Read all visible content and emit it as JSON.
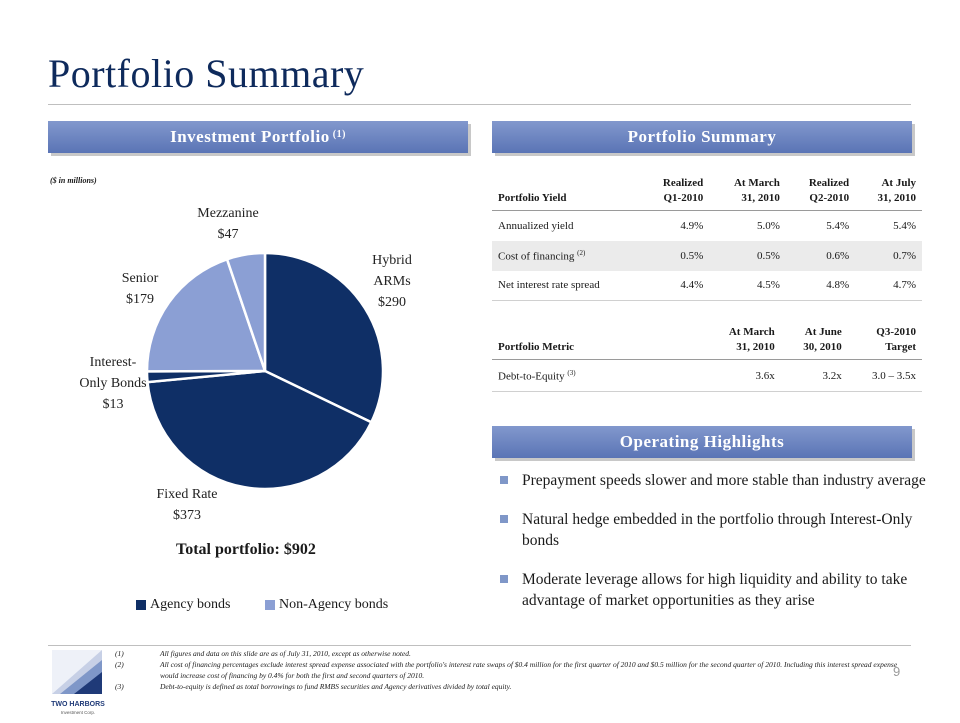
{
  "page": {
    "title": "Portfolio Summary",
    "page_number": "9"
  },
  "left_panel": {
    "header": "Investment Portfolio",
    "header_footnote": "(1)",
    "unit_note": "($ in millions)",
    "total": "Total portfolio: $902",
    "legend": [
      {
        "label": "Agency bonds",
        "color": "#0f2f66"
      },
      {
        "label": "Non-Agency bonds",
        "color": "#8b9fd4"
      }
    ]
  },
  "chart_data": {
    "type": "pie",
    "slices": [
      {
        "label": "Hybrid ARMs",
        "value": 290,
        "value_label": "$290",
        "group": "Agency bonds",
        "color": "#0f2f66"
      },
      {
        "label": "Fixed Rate",
        "value": 373,
        "value_label": "$373",
        "group": "Agency bonds",
        "color": "#0f2f66"
      },
      {
        "label": "Interest-Only Bonds",
        "value": 13,
        "value_label": "$13",
        "group": "Agency bonds",
        "color": "#0f2f66"
      },
      {
        "label": "Senior",
        "value": 179,
        "value_label": "$179",
        "group": "Non-Agency bonds",
        "color": "#8b9fd4"
      },
      {
        "label": "Mezzanine",
        "value": 47,
        "value_label": "$47",
        "group": "Non-Agency bonds",
        "color": "#8b9fd4"
      }
    ],
    "label_lines": {
      "Hybrid ARMs": [
        "Hybrid",
        "ARMs",
        "$290"
      ],
      "Fixed Rate": [
        "Fixed Rate",
        "$373"
      ],
      "Interest-Only Bonds": [
        "Interest-",
        "Only Bonds",
        "$13"
      ],
      "Senior": [
        "Senior",
        "$179"
      ],
      "Mezzanine": [
        "Mezzanine",
        "$47"
      ]
    }
  },
  "right_panel": {
    "summary_header": "Portfolio Summary",
    "yield_table": {
      "columns": [
        {
          "line1": "",
          "line2": "Portfolio Yield"
        },
        {
          "line1": "Realized",
          "line2": "Q1-2010"
        },
        {
          "line1": "At March",
          "line2": "31, 2010"
        },
        {
          "line1": "Realized",
          "line2": "Q2-2010"
        },
        {
          "line1": "At July",
          "line2": "31, 2010"
        }
      ],
      "rows": [
        {
          "label": "Annualized yield",
          "sup": "",
          "values": [
            "4.9%",
            "5.0%",
            "5.4%",
            "5.4%"
          ]
        },
        {
          "label": "Cost of financing",
          "sup": "(2)",
          "values": [
            "0.5%",
            "0.5%",
            "0.6%",
            "0.7%"
          ]
        },
        {
          "label": "Net interest rate spread",
          "sup": "",
          "values": [
            "4.4%",
            "4.5%",
            "4.8%",
            "4.7%"
          ]
        }
      ]
    },
    "metric_table": {
      "columns": [
        {
          "line1": "",
          "line2": "Portfolio Metric"
        },
        {
          "line1": "At March",
          "line2": "31, 2010"
        },
        {
          "line1": "At June",
          "line2": "30, 2010"
        },
        {
          "line1": "Q3-2010",
          "line2": "Target"
        }
      ],
      "rows": [
        {
          "label": "Debt-to-Equity",
          "sup": "(3)",
          "values": [
            "3.6x",
            "3.2x",
            "3.0 – 3.5x"
          ]
        }
      ]
    },
    "highlights_header": "Operating Highlights",
    "highlights": [
      "Prepayment speeds slower and more stable than industry average",
      "Natural hedge embedded in the portfolio through Interest-Only bonds",
      "Moderate leverage allows for high liquidity and ability to take advantage of market opportunities as they arise"
    ]
  },
  "footnotes": [
    {
      "num": "(1)",
      "text": "All figures and data on this slide are as of July 31, 2010, except as otherwise noted."
    },
    {
      "num": "(2)",
      "text": "All cost of financing percentages exclude interest spread expense associated with the portfolio's interest rate swaps of $0.4 million for the first quarter of 2010 and $0.5 million for the second quarter of 2010.  Including this interest spread expense would increase cost of financing by 0.4% for both the first and second quarters of 2010."
    },
    {
      "num": "(3)",
      "text": "Debt-to-equity is defined as total borrowings to fund RMBS securities and Agency derivatives divided by total equity."
    }
  ],
  "logo": {
    "text": "TWO HARBORS",
    "subtext": "Investment Corp."
  }
}
